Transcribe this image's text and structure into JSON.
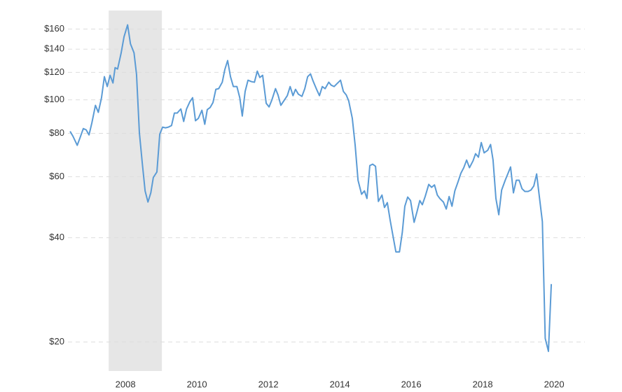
{
  "chart_data": {
    "type": "line",
    "log_scale": true,
    "grid": true,
    "shade": {
      "x": [
        2007.53,
        2009.02
      ],
      "color": "#e6e6e6"
    },
    "xlim": [
      2006.39,
      2020.86
    ],
    "xticks": [
      2008,
      2010,
      2012,
      2014,
      2016,
      2018,
      2020
    ],
    "ylim": [
      16.5,
      181
    ],
    "yticks": [
      {
        "value": 20,
        "label": "$20"
      },
      {
        "value": 40,
        "label": "$40"
      },
      {
        "value": 60,
        "label": "$60"
      },
      {
        "value": 80,
        "label": "$80"
      },
      {
        "value": 100,
        "label": "$100"
      },
      {
        "value": 120,
        "label": "$120"
      },
      {
        "value": 140,
        "label": "$140"
      },
      {
        "value": 160,
        "label": "$160"
      }
    ],
    "series": [
      {
        "color": "#5b9bd5",
        "x": [
          2006.45,
          2006.53,
          2006.65,
          2006.73,
          2006.82,
          2006.9,
          2006.98,
          2007.06,
          2007.16,
          2007.24,
          2007.33,
          2007.41,
          2007.49,
          2007.57,
          2007.65,
          2007.71,
          2007.78,
          2007.88,
          2007.96,
          2008.06,
          2008.14,
          2008.24,
          2008.31,
          2008.39,
          2008.47,
          2008.55,
          2008.63,
          2008.71,
          2008.78,
          2008.88,
          2008.96,
          2009.04,
          2009.12,
          2009.2,
          2009.29,
          2009.37,
          2009.45,
          2009.55,
          2009.63,
          2009.71,
          2009.8,
          2009.88,
          2009.96,
          2010.04,
          2010.14,
          2010.22,
          2010.29,
          2010.37,
          2010.45,
          2010.53,
          2010.61,
          2010.71,
          2010.78,
          2010.86,
          2010.94,
          2011.02,
          2011.12,
          2011.2,
          2011.27,
          2011.35,
          2011.43,
          2011.53,
          2011.61,
          2011.69,
          2011.76,
          2011.84,
          2011.94,
          2012.02,
          2012.1,
          2012.2,
          2012.27,
          2012.35,
          2012.43,
          2012.53,
          2012.61,
          2012.69,
          2012.76,
          2012.84,
          2012.94,
          2013.02,
          2013.1,
          2013.18,
          2013.25,
          2013.35,
          2013.43,
          2013.51,
          2013.59,
          2013.69,
          2013.76,
          2013.84,
          2013.92,
          2014.02,
          2014.1,
          2014.18,
          2014.25,
          2014.35,
          2014.43,
          2014.51,
          2014.61,
          2014.69,
          2014.76,
          2014.84,
          2014.92,
          2015.0,
          2015.08,
          2015.18,
          2015.25,
          2015.33,
          2015.41,
          2015.49,
          2015.57,
          2015.67,
          2015.75,
          2015.82,
          2015.9,
          2015.98,
          2016.08,
          2016.16,
          2016.24,
          2016.31,
          2016.39,
          2016.49,
          2016.57,
          2016.65,
          2016.73,
          2016.8,
          2016.9,
          2016.98,
          2017.06,
          2017.14,
          2017.22,
          2017.31,
          2017.39,
          2017.47,
          2017.55,
          2017.63,
          2017.73,
          2017.8,
          2017.88,
          2017.96,
          2018.04,
          2018.14,
          2018.22,
          2018.29,
          2018.37,
          2018.45,
          2018.53,
          2018.63,
          2018.71,
          2018.78,
          2018.86,
          2018.94,
          2019.02,
          2019.1,
          2019.18,
          2019.27,
          2019.35,
          2019.43,
          2019.51,
          2019.59,
          2019.67,
          2019.75,
          2019.84,
          2019.92
        ],
        "values": [
          81.1,
          78.5,
          73.9,
          77.8,
          82.6,
          81.9,
          79.2,
          85.8,
          96.4,
          92,
          101.4,
          116.6,
          109.2,
          117.7,
          111.8,
          123.8,
          122.7,
          136.6,
          152,
          164.5,
          145,
          136.6,
          118.3,
          80.3,
          65.8,
          54.6,
          50.7,
          53.9,
          59.7,
          61.9,
          79.6,
          83.4,
          83,
          83.4,
          84.3,
          91.6,
          91.6,
          94.1,
          86.6,
          94.1,
          98.6,
          101.4,
          87,
          88.4,
          93.3,
          85,
          93.7,
          95,
          98.2,
          107.2,
          107.7,
          112.4,
          122.1,
          129.8,
          116.6,
          109.2,
          109.2,
          101.4,
          89.8,
          105.7,
          113.9,
          112.8,
          112.4,
          121,
          116,
          117.7,
          97.7,
          95.4,
          100,
          107.7,
          103.3,
          96.4,
          99.2,
          102.8,
          109.2,
          102.8,
          107.2,
          103.8,
          102.3,
          107.7,
          116.6,
          118.8,
          113.4,
          107.2,
          102.8,
          109.2,
          107.7,
          112.4,
          110.2,
          109.2,
          111.3,
          113.9,
          105.7,
          103.3,
          99.2,
          88.4,
          73.9,
          58.6,
          53.4,
          54.6,
          51.9,
          64.6,
          65.2,
          64.3,
          50.9,
          53.1,
          48.9,
          50.5,
          44.9,
          40.4,
          36.4,
          36.4,
          41.5,
          49.3,
          52.4,
          51.2,
          44.3,
          47.5,
          51.2,
          49.8,
          52.6,
          57,
          55.9,
          56.8,
          53.1,
          51.9,
          50.7,
          48.4,
          52.6,
          49.3,
          54.6,
          58,
          61.4,
          63.7,
          67,
          63.7,
          66.7,
          69.9,
          68.3,
          75.3,
          70.3,
          71.5,
          74.3,
          67,
          51.9,
          46.6,
          54.9,
          58.6,
          61.4,
          64,
          53.9,
          58.6,
          58.6,
          55.4,
          54.4,
          54.4,
          54.9,
          56.4,
          61.1,
          52.1,
          44.5,
          20.5,
          18.8,
          29.4
        ]
      }
    ]
  }
}
